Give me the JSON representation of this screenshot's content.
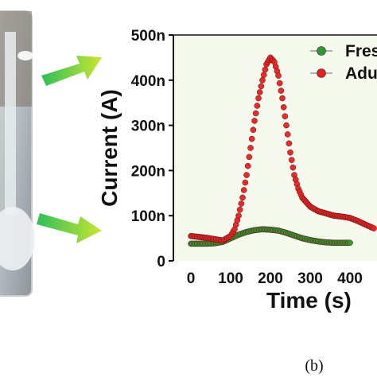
{
  "figure": {
    "panel_label": "(b)",
    "photo_description": "laboratory glassware apparatus (photo, cropped)"
  },
  "colors": {
    "fresh": "#2e9a2e",
    "adulterated": "#e52222",
    "arrow_start": "#2fbf5a",
    "arrow_end": "#c8e630",
    "plot_bg": "#f6f9ee"
  },
  "chart_data": {
    "type": "scatter",
    "title": "",
    "xlabel": "Time (s)",
    "ylabel": "Current (A)",
    "xlim": [
      -20,
      470
    ],
    "ylim": [
      0,
      5e-07
    ],
    "xticks": [
      {
        "value": 0,
        "label": "0"
      },
      {
        "value": 100,
        "label": "100"
      },
      {
        "value": 200,
        "label": "200"
      },
      {
        "value": 300,
        "label": "300"
      },
      {
        "value": 400,
        "label": "400"
      }
    ],
    "yticks": [
      {
        "value": 0,
        "label": "0"
      },
      {
        "value": 1e-07,
        "label": "100n"
      },
      {
        "value": 2e-07,
        "label": "200n"
      },
      {
        "value": 3e-07,
        "label": "300n"
      },
      {
        "value": 4e-07,
        "label": "400n"
      },
      {
        "value": 5e-07,
        "label": "500n"
      }
    ],
    "legend_position": "top-right",
    "series": [
      {
        "name": "Fres",
        "color": "#2e9a2e",
        "points": [
          [
            0,
            3.8e-08
          ],
          [
            20,
            3.8e-08
          ],
          [
            40,
            3.8e-08
          ],
          [
            60,
            3.9e-08
          ],
          [
            80,
            4.2e-08
          ],
          [
            100,
            5e-08
          ],
          [
            120,
            5.8e-08
          ],
          [
            140,
            6.4e-08
          ],
          [
            160,
            6.8e-08
          ],
          [
            180,
            7e-08
          ],
          [
            200,
            6.9e-08
          ],
          [
            220,
            6.7e-08
          ],
          [
            240,
            6.2e-08
          ],
          [
            260,
            5.6e-08
          ],
          [
            280,
            5e-08
          ],
          [
            300,
            4.6e-08
          ],
          [
            320,
            4.3e-08
          ],
          [
            340,
            4.1e-08
          ],
          [
            360,
            4e-08
          ],
          [
            380,
            4e-08
          ],
          [
            400,
            4e-08
          ]
        ]
      },
      {
        "name": "Adu",
        "color": "#e52222",
        "points": [
          [
            0,
            5.5e-08
          ],
          [
            20,
            5.3e-08
          ],
          [
            40,
            5.1e-08
          ],
          [
            60,
            4.8e-08
          ],
          [
            80,
            4.5e-08
          ],
          [
            100,
            5.5e-08
          ],
          [
            110,
            7e-08
          ],
          [
            120,
            1e-07
          ],
          [
            130,
            1.4e-07
          ],
          [
            140,
            1.9e-07
          ],
          [
            150,
            2.5e-07
          ],
          [
            160,
            3.1e-07
          ],
          [
            170,
            3.6e-07
          ],
          [
            180,
            4e-07
          ],
          [
            190,
            4.35e-07
          ],
          [
            200,
            4.5e-07
          ],
          [
            210,
            4.4e-07
          ],
          [
            220,
            4.1e-07
          ],
          [
            230,
            3.6e-07
          ],
          [
            240,
            3e-07
          ],
          [
            250,
            2.4e-07
          ],
          [
            260,
            1.9e-07
          ],
          [
            270,
            1.6e-07
          ],
          [
            280,
            1.4e-07
          ],
          [
            290,
            1.3e-07
          ],
          [
            300,
            1.2e-07
          ],
          [
            320,
            1.1e-07
          ],
          [
            340,
            1.05e-07
          ],
          [
            360,
            1e-07
          ],
          [
            380,
            9.8e-08
          ],
          [
            400,
            9.5e-08
          ],
          [
            420,
            8.8e-08
          ],
          [
            440,
            8e-08
          ],
          [
            460,
            7.2e-08
          ]
        ]
      }
    ]
  }
}
